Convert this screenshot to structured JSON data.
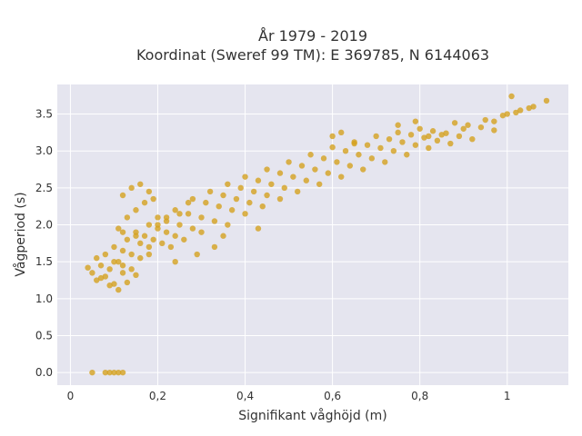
{
  "chart_data": {
    "type": "scatter",
    "title_lines": [
      "År 1979 - 2019",
      "Koordinat (Sweref 99 TM): E 369785, N 6144063"
    ],
    "xlabel": "Signifikant våghöjd (m)",
    "ylabel": "Vågperiod (s)",
    "xlim": [
      -0.03,
      1.14
    ],
    "ylim": [
      -0.17,
      3.9
    ],
    "xticks": [
      0,
      0.2,
      0.4,
      0.6,
      0.8,
      1
    ],
    "xtick_labels": [
      "0",
      "0,2",
      "0,4",
      "0,6",
      "0,8",
      "1"
    ],
    "yticks": [
      0,
      0.5,
      1,
      1.5,
      2,
      2.5,
      3,
      3.5
    ],
    "ytick_labels": [
      "0.0",
      "0.5",
      "1.0",
      "1.5",
      "2.0",
      "2.5",
      "3.0",
      "3.5"
    ],
    "grid": true,
    "legend": "none",
    "marker_color": "#D4A11F",
    "plot_bg": "#E5E5EF",
    "series": [
      {
        "x": [
          0.05,
          0.08,
          0.09,
          0.1,
          0.11,
          0.12,
          0.04,
          0.05,
          0.06,
          0.07,
          0.08,
          0.09,
          0.1,
          0.11,
          0.12,
          0.06,
          0.08,
          0.1,
          0.12,
          0.14,
          0.16,
          0.07,
          0.09,
          0.11,
          0.13,
          0.15,
          0.1,
          0.12,
          0.14,
          0.13,
          0.16,
          0.18,
          0.15,
          0.17,
          0.19,
          0.21,
          0.23,
          0.18,
          0.2,
          0.22,
          0.24,
          0.26,
          0.2,
          0.22,
          0.25,
          0.28,
          0.3,
          0.24,
          0.27,
          0.3,
          0.33,
          0.36,
          0.28,
          0.31,
          0.34,
          0.37,
          0.4,
          0.32,
          0.35,
          0.38,
          0.41,
          0.44,
          0.36,
          0.39,
          0.42,
          0.45,
          0.48,
          0.4,
          0.43,
          0.46,
          0.49,
          0.52,
          0.45,
          0.48,
          0.51,
          0.54,
          0.57,
          0.5,
          0.53,
          0.56,
          0.59,
          0.62,
          0.55,
          0.58,
          0.61,
          0.64,
          0.67,
          0.6,
          0.63,
          0.66,
          0.69,
          0.72,
          0.65,
          0.68,
          0.71,
          0.74,
          0.77,
          0.7,
          0.73,
          0.76,
          0.79,
          0.82,
          0.75,
          0.78,
          0.81,
          0.84,
          0.87,
          0.8,
          0.83,
          0.86,
          0.89,
          0.92,
          0.88,
          0.91,
          0.94,
          0.97,
          0.95,
          0.99,
          1.0,
          1.02,
          1.03,
          1.05,
          1.06,
          1.09,
          0.97,
          1.01,
          0.12,
          0.14,
          0.16,
          0.18,
          0.11,
          0.13,
          0.15,
          0.17,
          0.19,
          0.12,
          0.15,
          0.18,
          0.2,
          0.22,
          0.25,
          0.27,
          0.24,
          0.29,
          0.33,
          0.35,
          0.43,
          0.6,
          0.62,
          0.65,
          0.75,
          0.79,
          0.82,
          0.85,
          0.9
        ],
        "y": [
          0.0,
          0.0,
          0.0,
          0.0,
          0.0,
          0.0,
          1.42,
          1.35,
          1.25,
          1.45,
          1.3,
          1.4,
          1.2,
          1.5,
          1.35,
          1.55,
          1.6,
          1.5,
          1.45,
          1.4,
          1.55,
          1.28,
          1.18,
          1.12,
          1.22,
          1.32,
          1.7,
          1.65,
          1.6,
          1.8,
          1.75,
          1.7,
          1.9,
          1.85,
          1.8,
          1.75,
          1.7,
          2.0,
          1.95,
          1.9,
          1.85,
          1.8,
          2.1,
          2.05,
          2.0,
          1.95,
          1.9,
          2.2,
          2.15,
          2.1,
          2.05,
          2.0,
          2.35,
          2.3,
          2.25,
          2.2,
          2.15,
          2.45,
          2.4,
          2.35,
          2.3,
          2.25,
          2.55,
          2.5,
          2.45,
          2.4,
          2.35,
          2.65,
          2.6,
          2.55,
          2.5,
          2.45,
          2.75,
          2.7,
          2.65,
          2.6,
          2.55,
          2.85,
          2.8,
          2.75,
          2.7,
          2.65,
          2.95,
          2.9,
          2.85,
          2.8,
          2.75,
          3.05,
          3.0,
          2.95,
          2.9,
          2.85,
          3.12,
          3.08,
          3.04,
          3.0,
          2.95,
          3.2,
          3.16,
          3.12,
          3.08,
          3.04,
          3.25,
          3.22,
          3.18,
          3.14,
          3.1,
          3.3,
          3.27,
          3.24,
          3.2,
          3.16,
          3.38,
          3.35,
          3.32,
          3.28,
          3.42,
          3.48,
          3.5,
          3.52,
          3.55,
          3.58,
          3.6,
          3.68,
          3.4,
          3.74,
          2.4,
          2.5,
          2.55,
          2.45,
          1.95,
          2.1,
          2.2,
          2.3,
          2.35,
          1.9,
          1.85,
          1.6,
          2.0,
          2.1,
          2.15,
          2.3,
          1.5,
          1.6,
          1.7,
          1.85,
          1.95,
          3.2,
          3.25,
          3.1,
          3.35,
          3.4,
          3.2,
          3.22,
          3.3
        ]
      }
    ]
  }
}
